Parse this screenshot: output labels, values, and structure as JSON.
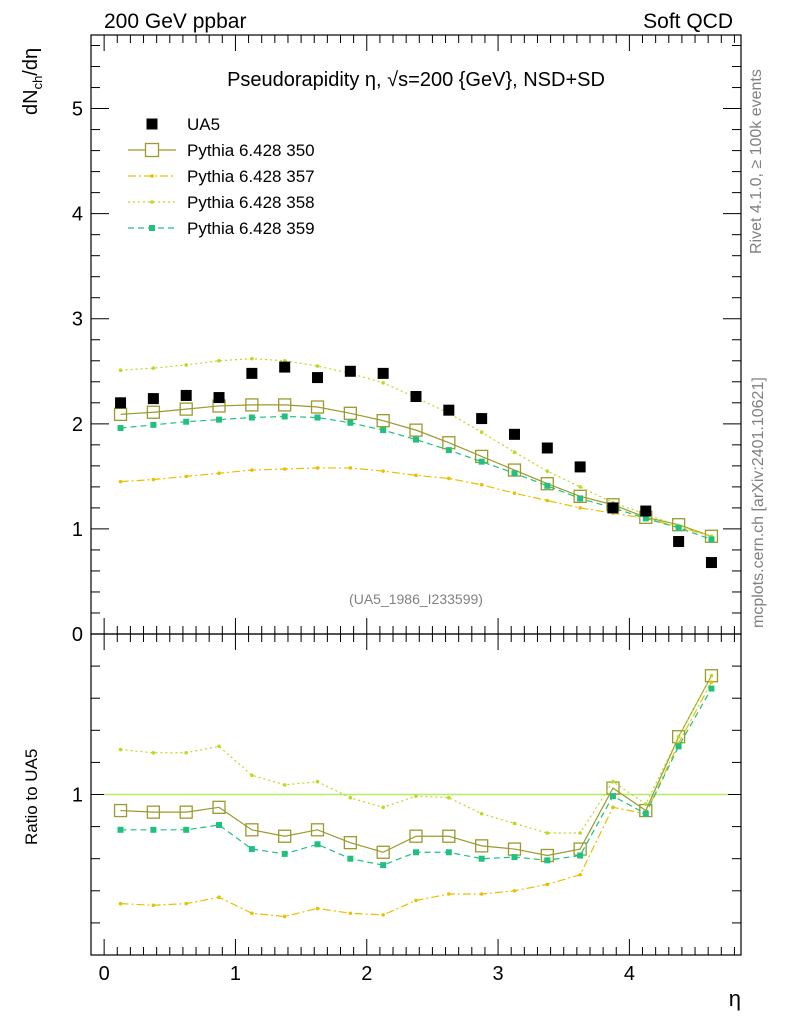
{
  "header": {
    "left": "200 GeV ppbar",
    "right": "Soft QCD"
  },
  "side_labels": {
    "rivet": "Rivet 4.1.0, ≥ 100k events",
    "mcplots": "mcplots.cern.ch [arXiv:2401.10621]"
  },
  "chart_data": {
    "type": "scatter",
    "title": "Pseudorapidity η, √s=200 {GeV}, NSD+SD",
    "xlabel": "η",
    "ylabel": "dN_ch/dη",
    "ratio_ylabel": "Ratio to UA5",
    "analysis_tag": "(UA5_1986_I233599)",
    "xlim": [
      -0.1,
      4.85
    ],
    "ylim": [
      0,
      5.7
    ],
    "ratio_ylim": [
      0.5,
      1.5
    ],
    "x_ticks": [
      0,
      1,
      2,
      3,
      4
    ],
    "y_ticks": [
      1,
      2,
      3,
      4,
      5
    ],
    "ratio_y_ticks": [
      1
    ],
    "x": [
      0.125,
      0.375,
      0.625,
      0.875,
      1.125,
      1.375,
      1.625,
      1.875,
      2.125,
      2.375,
      2.625,
      2.875,
      3.125,
      3.375,
      3.625,
      3.875,
      4.125,
      4.375,
      4.625
    ],
    "series": [
      {
        "name": "UA5",
        "style": "data",
        "color": "#000000",
        "values": [
          2.2,
          2.24,
          2.27,
          2.25,
          2.48,
          2.54,
          2.44,
          2.5,
          2.48,
          2.26,
          2.13,
          2.05,
          1.9,
          1.77,
          1.59,
          1.2,
          1.17,
          0.88,
          0.68
        ],
        "ratio": [
          1.0,
          1.0,
          1.0,
          1.0,
          1.0,
          1.0,
          1.0,
          1.0,
          1.0,
          1.0,
          1.0,
          1.0,
          1.0,
          1.0,
          1.0,
          1.0,
          1.0,
          1.0,
          1.0
        ]
      },
      {
        "name": "Pythia 6.428 350",
        "style": "open-square",
        "color": "#9a9a2e",
        "values": [
          2.09,
          2.11,
          2.14,
          2.17,
          2.18,
          2.18,
          2.16,
          2.1,
          2.03,
          1.94,
          1.82,
          1.69,
          1.56,
          1.43,
          1.31,
          1.23,
          1.11,
          1.04,
          0.93
        ],
        "ratio": [
          0.95,
          0.945,
          0.945,
          0.96,
          0.89,
          0.87,
          0.89,
          0.85,
          0.82,
          0.87,
          0.87,
          0.84,
          0.83,
          0.81,
          0.83,
          1.02,
          0.95,
          1.18,
          1.37
        ]
      },
      {
        "name": "Pythia 6.428 357",
        "style": "dashdot",
        "color": "#e8c000",
        "values": [
          1.45,
          1.47,
          1.5,
          1.53,
          1.56,
          1.57,
          1.58,
          1.58,
          1.55,
          1.51,
          1.48,
          1.42,
          1.34,
          1.27,
          1.2,
          1.15,
          1.1,
          1.02,
          0.93
        ],
        "ratio": [
          0.66,
          0.655,
          0.66,
          0.68,
          0.63,
          0.62,
          0.645,
          0.63,
          0.625,
          0.67,
          0.69,
          0.69,
          0.7,
          0.72,
          0.75,
          0.96,
          0.94,
          1.16,
          1.35
        ]
      },
      {
        "name": "Pythia 6.428 358",
        "style": "dotted",
        "color": "#b6dc1e",
        "values": [
          2.51,
          2.53,
          2.56,
          2.6,
          2.62,
          2.6,
          2.55,
          2.48,
          2.39,
          2.25,
          2.1,
          1.92,
          1.73,
          1.55,
          1.4,
          1.25,
          1.14,
          1.03,
          0.93
        ],
        "ratio": [
          1.14,
          1.13,
          1.13,
          1.15,
          1.06,
          1.03,
          1.04,
          0.99,
          0.96,
          0.995,
          0.99,
          0.94,
          0.91,
          0.88,
          0.88,
          1.04,
          0.97,
          1.18,
          1.37
        ]
      },
      {
        "name": "Pythia 6.428 359",
        "style": "dashed",
        "color": "#20c080",
        "values": [
          1.96,
          1.99,
          2.02,
          2.04,
          2.06,
          2.07,
          2.06,
          2.01,
          1.94,
          1.85,
          1.75,
          1.64,
          1.53,
          1.41,
          1.29,
          1.2,
          1.1,
          1.01,
          0.9
        ],
        "ratio": [
          0.89,
          0.89,
          0.89,
          0.905,
          0.83,
          0.815,
          0.845,
          0.8,
          0.78,
          0.82,
          0.82,
          0.8,
          0.805,
          0.795,
          0.81,
          0.995,
          0.94,
          1.15,
          1.33
        ]
      }
    ]
  }
}
